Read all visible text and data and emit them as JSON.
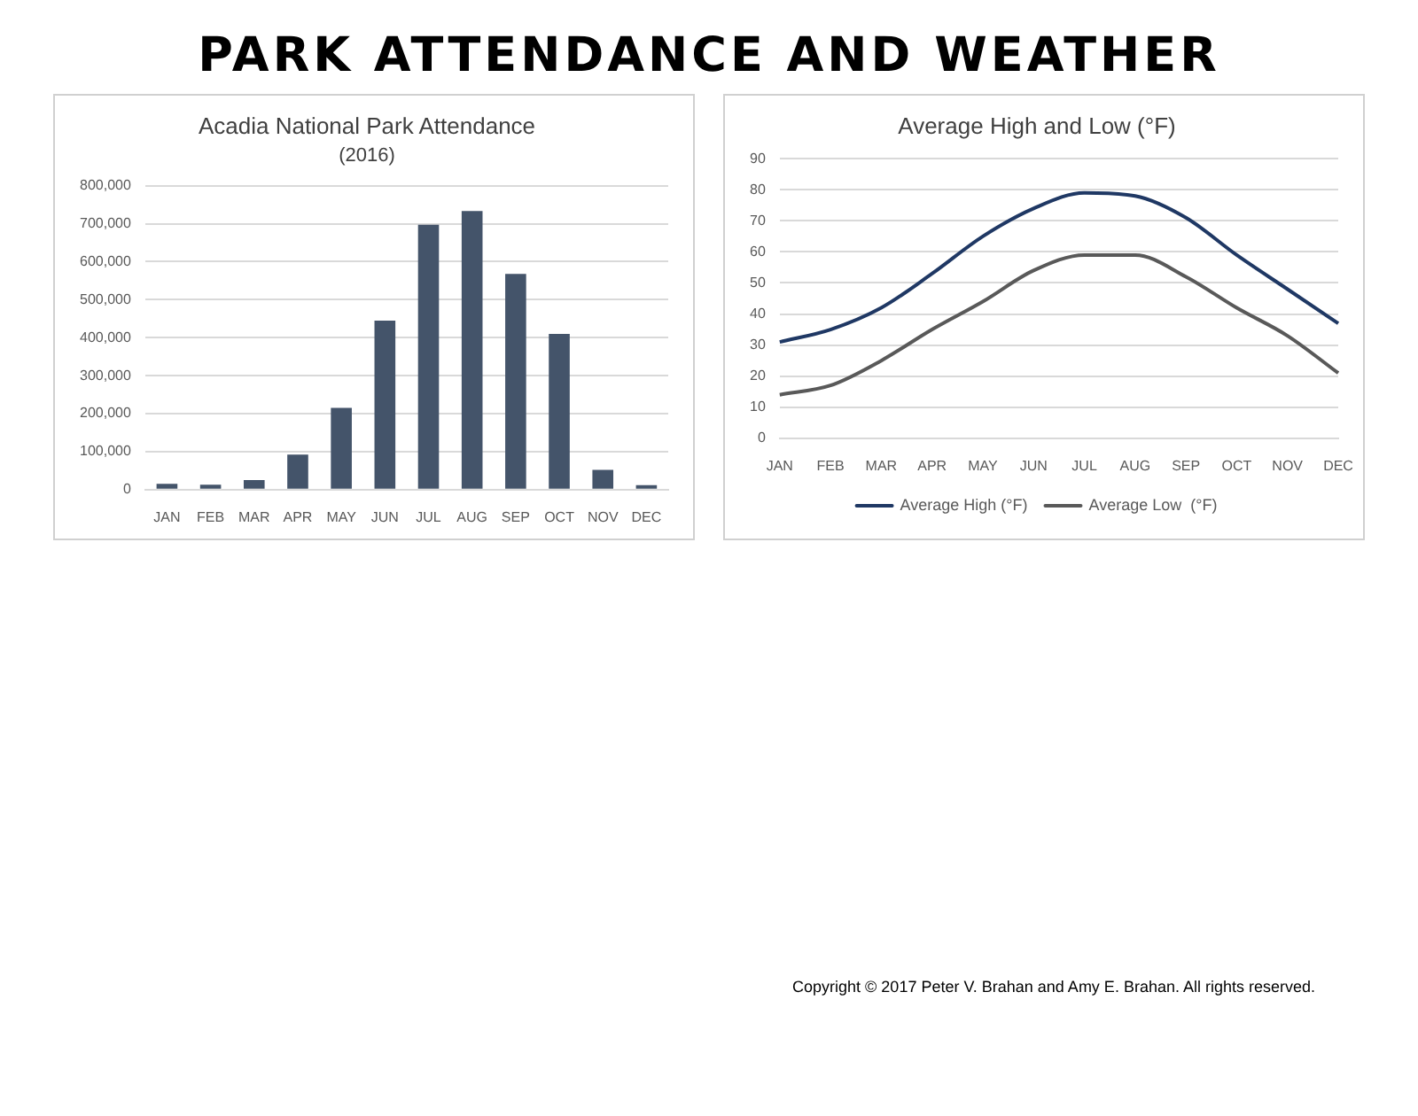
{
  "chart_data": [
    {
      "type": "bar",
      "title": "Acadia National Park Attendance",
      "subtitle": "(2016)",
      "annotations": [
        "PARK ATTENDANCE AND WEATHER"
      ],
      "categories": [
        "JAN",
        "FEB",
        "MAR",
        "APR",
        "MAY",
        "JUN",
        "JUL",
        "AUG",
        "SEP",
        "OCT",
        "NOV",
        "DEC"
      ],
      "values": [
        15000,
        13000,
        25000,
        92000,
        215000,
        445000,
        697000,
        733000,
        568000,
        410000,
        52000,
        12000
      ],
      "color": "#44546a",
      "ylim": [
        0,
        800000
      ],
      "yticks": [
        0,
        {
          "value": 100000,
          "label": "100,000"
        },
        {
          "value": 200000,
          "label": "200,000"
        },
        {
          "value": 300000,
          "label": "300,000"
        },
        {
          "value": 400000,
          "label": "400,000"
        },
        {
          "value": 500000,
          "label": "500,000"
        },
        {
          "value": 600000,
          "label": "600,000"
        },
        {
          "value": 700000,
          "label": "700,000"
        },
        {
          "value": 800000,
          "label": "800,000"
        }
      ],
      "grid": "y"
    },
    {
      "type": "line",
      "title": "Average High and Low (°F)",
      "annotations": [
        "Copyright © 2017 Peter V. Brahan and Amy E. Brahan.  All rights reserved."
      ],
      "categories": [
        "JAN",
        "FEB",
        "MAR",
        "APR",
        "MAY",
        "JUN",
        "JUL",
        "AUG",
        "SEP",
        "OCT",
        "NOV",
        "DEC"
      ],
      "series": [
        {
          "name": "Average High (°F)",
          "color": "#1f3864",
          "values": [
            31,
            35,
            42,
            53,
            65,
            74,
            79,
            78,
            71,
            59,
            48,
            37
          ]
        },
        {
          "name": "Average Low  (°F)",
          "color": "#595959",
          "values": [
            14,
            17,
            25,
            35,
            44,
            54,
            59,
            59,
            52,
            42,
            33,
            21
          ]
        }
      ],
      "ylim": [
        0,
        90
      ],
      "yticks": [
        0,
        10,
        20,
        30,
        40,
        50,
        60,
        70,
        80,
        90
      ],
      "grid": "y",
      "legend": "bottom",
      "marker": "none",
      "line_style": "solid"
    }
  ]
}
